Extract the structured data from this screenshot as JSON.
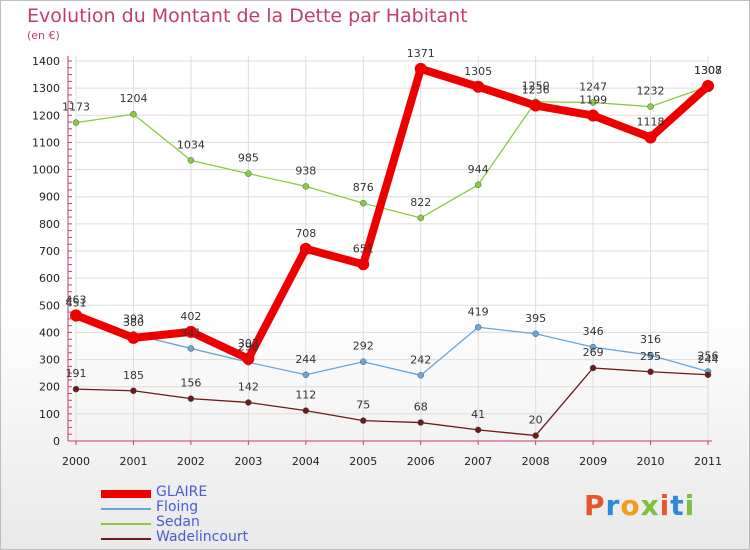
{
  "header": {
    "title": "Evolution du Montant de la Dette par Habitant",
    "unit": "(en €)"
  },
  "logo": {
    "text": "Proxiti"
  },
  "colors": {
    "title": "#c43c6e",
    "axis": "#c43c6e",
    "grid": "#dcdcdc",
    "legend_text": "#4a5bd6"
  },
  "chart_data": {
    "type": "line",
    "title": "Evolution du Montant de la Dette par Habitant",
    "subtitle": "(en €)",
    "categories": [
      "2000",
      "2001",
      "2002",
      "2003",
      "2004",
      "2005",
      "2006",
      "2007",
      "2008",
      "2009",
      "2010",
      "2011"
    ],
    "ylim": [
      0,
      1400
    ],
    "yticks": [
      0,
      100,
      200,
      300,
      400,
      500,
      600,
      700,
      800,
      900,
      1000,
      1100,
      1200,
      1300,
      1400
    ],
    "grid": true,
    "legend_position": "bottom-left",
    "series": [
      {
        "name": "GLAIRE",
        "color": "#ee0000",
        "values": [
          463,
          380,
          402,
          303,
          708,
          651,
          1371,
          1305,
          1236,
          1199,
          1118,
          1308
        ]
      },
      {
        "name": "Floing",
        "color": "#6aa6d8",
        "values": [
          451,
          393,
          341,
          290,
          244,
          292,
          242,
          419,
          395,
          346,
          316,
          256
        ]
      },
      {
        "name": "Sedan",
        "color": "#8acb3e",
        "values": [
          1173,
          1204,
          1034,
          985,
          938,
          876,
          822,
          944,
          1250,
          1247,
          1232,
          1307
        ]
      },
      {
        "name": "Wadelincourt",
        "color": "#6b1a1a",
        "values": [
          191,
          185,
          156,
          142,
          112,
          75,
          68,
          41,
          20,
          269,
          255,
          244
        ]
      }
    ]
  }
}
